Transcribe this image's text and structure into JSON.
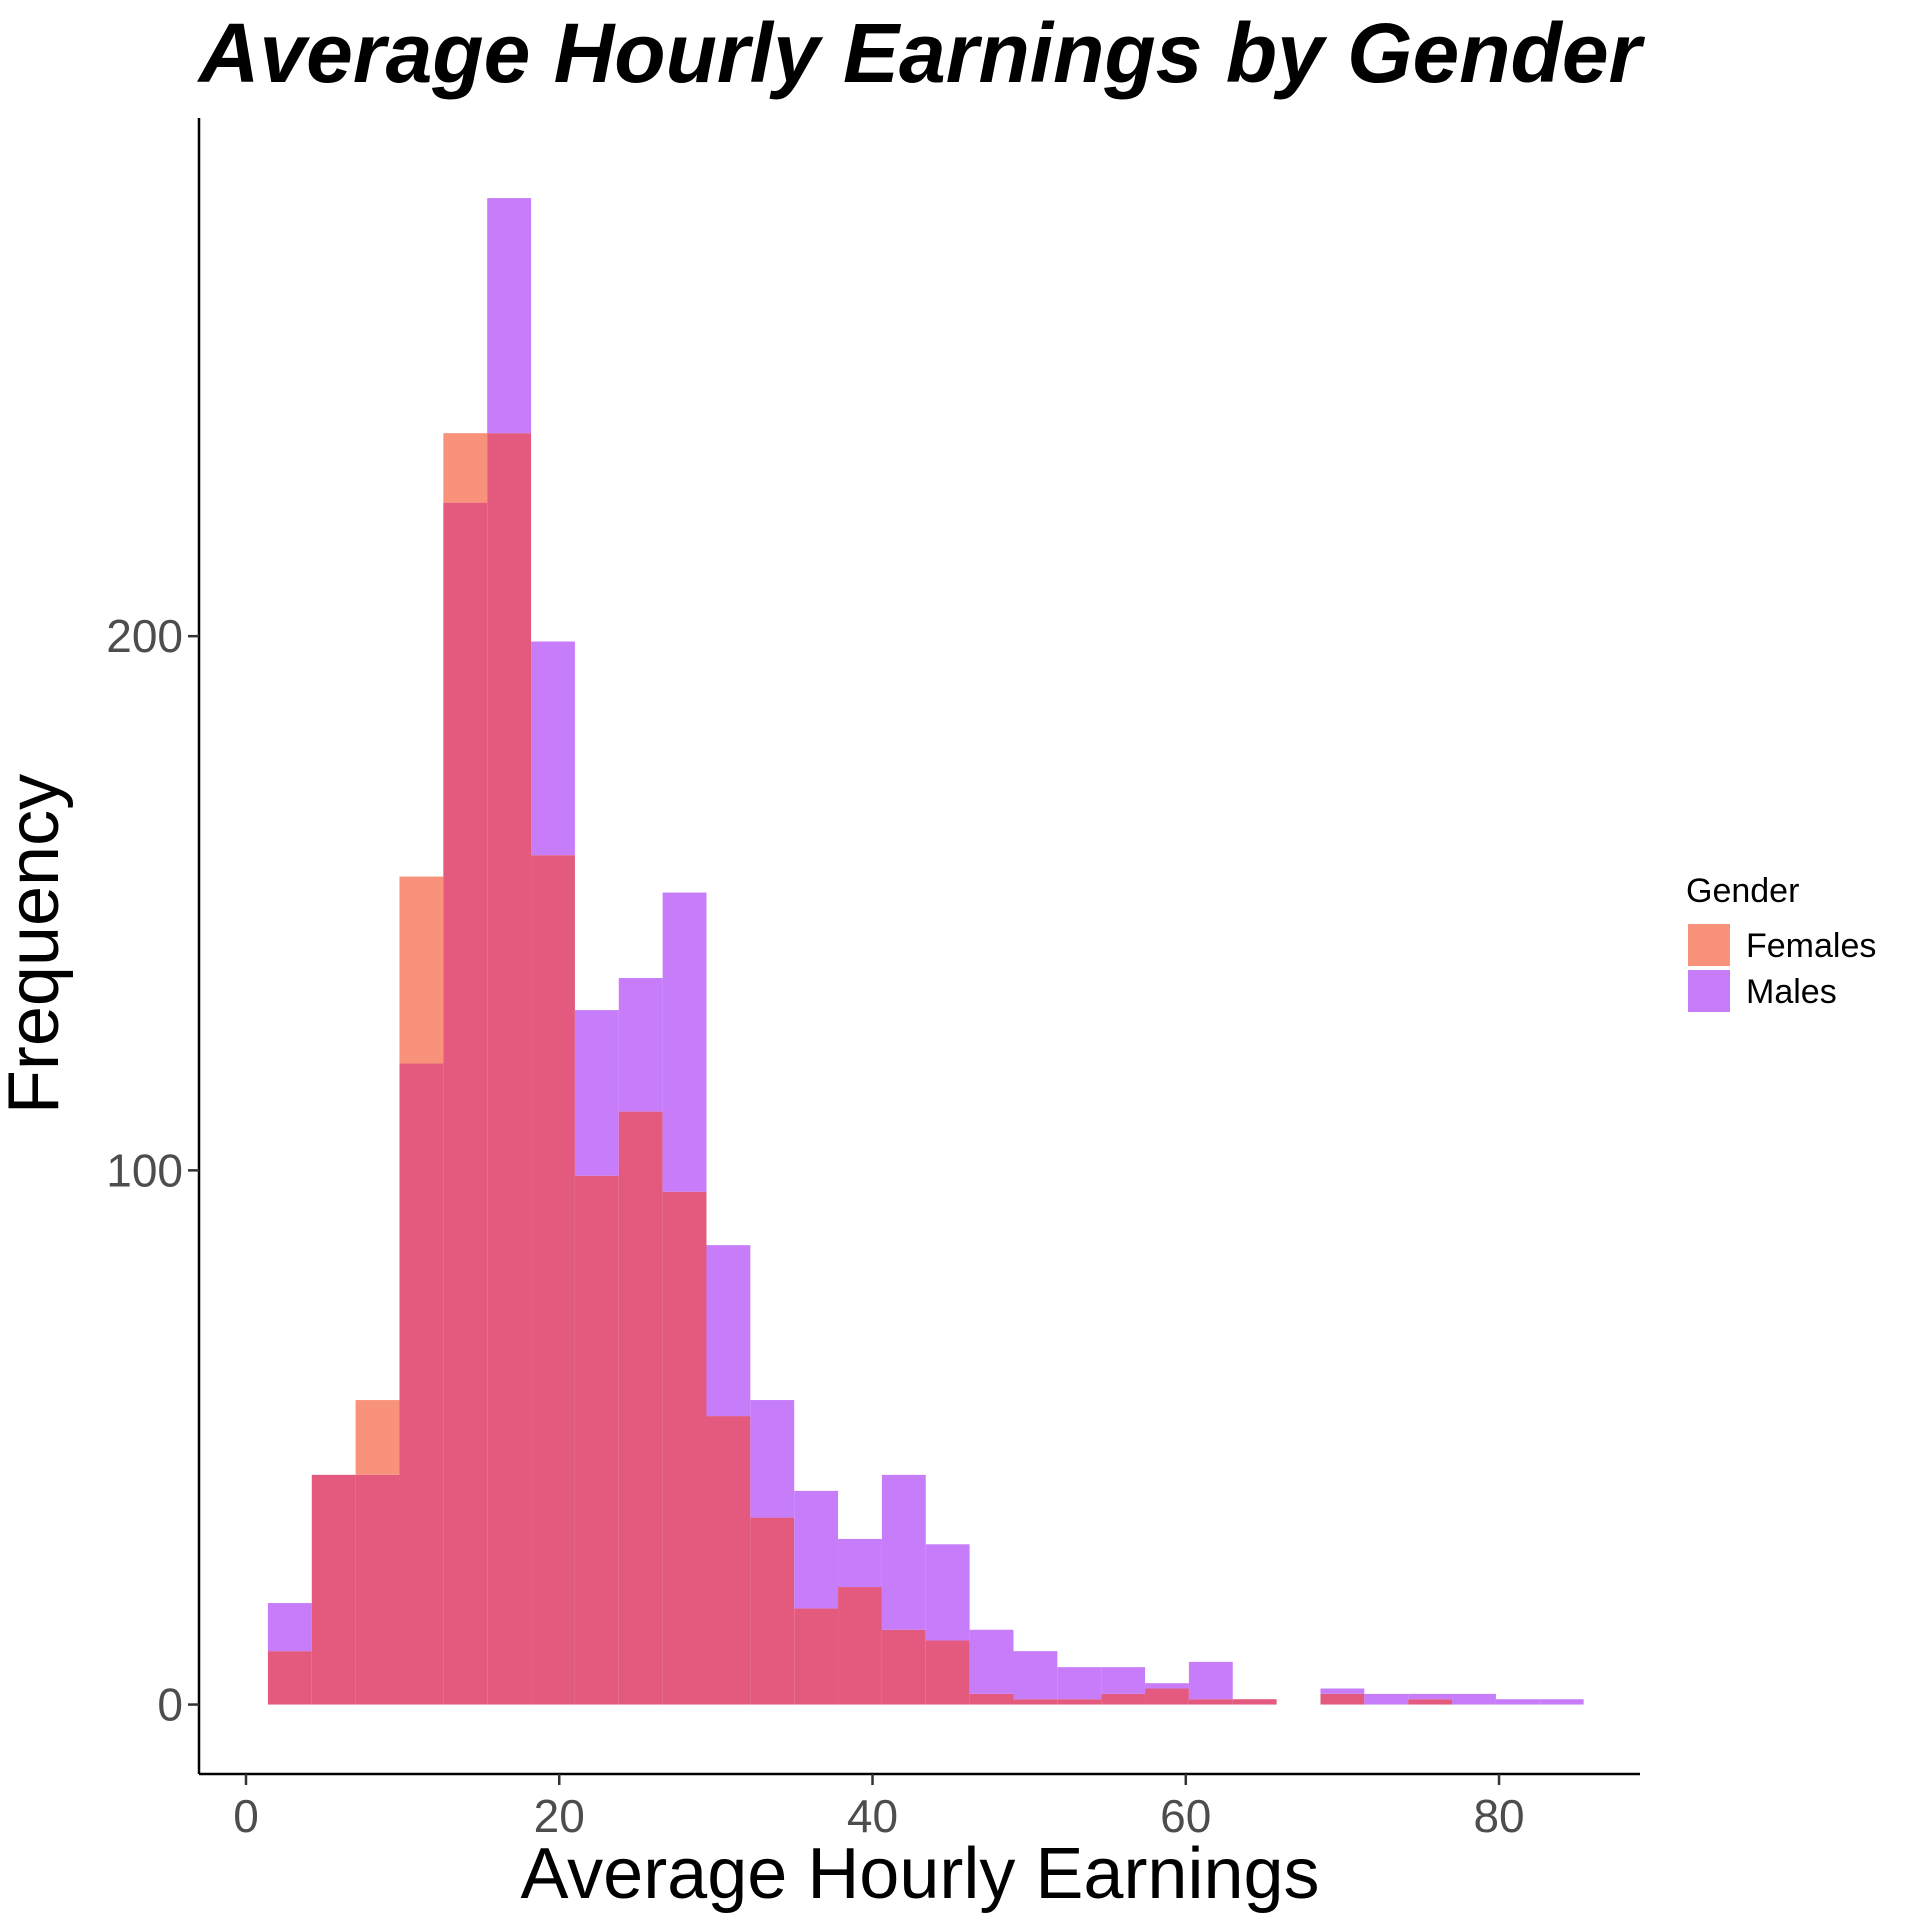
{
  "chart_data": {
    "type": "bar",
    "subtype": "overlapping-histogram",
    "title": "Average Hourly Earnings by Gender",
    "xlabel": "Average Hourly Earnings",
    "ylabel": "Frequency",
    "xlim": [
      -3,
      89
    ],
    "ylim": [
      -13,
      297
    ],
    "xticks": [
      0,
      20,
      40,
      60,
      80
    ],
    "yticks": [
      0,
      100,
      200
    ],
    "bin_width": 2.8,
    "bin_start": 1.4,
    "legend": {
      "title": "Gender",
      "position": "right",
      "entries": [
        "Females",
        "Males"
      ]
    },
    "grid": false,
    "overlap_color": "#e35a7e",
    "series": [
      {
        "name": "Females",
        "color": "#f9927b",
        "values": [
          10,
          43,
          57,
          155,
          238,
          238,
          159,
          99,
          111,
          96,
          54,
          35,
          18,
          22,
          14,
          12,
          2,
          1,
          1,
          2,
          3,
          1,
          1,
          0,
          2,
          0,
          1,
          0,
          0,
          0
        ]
      },
      {
        "name": "Males",
        "color": "#c77cfa",
        "values": [
          19,
          43,
          43,
          120,
          225,
          282,
          199,
          130,
          136,
          152,
          86,
          57,
          40,
          31,
          43,
          30,
          14,
          10,
          7,
          7,
          4,
          8,
          1,
          0,
          3,
          2,
          2,
          2,
          1,
          1
        ]
      }
    ]
  }
}
